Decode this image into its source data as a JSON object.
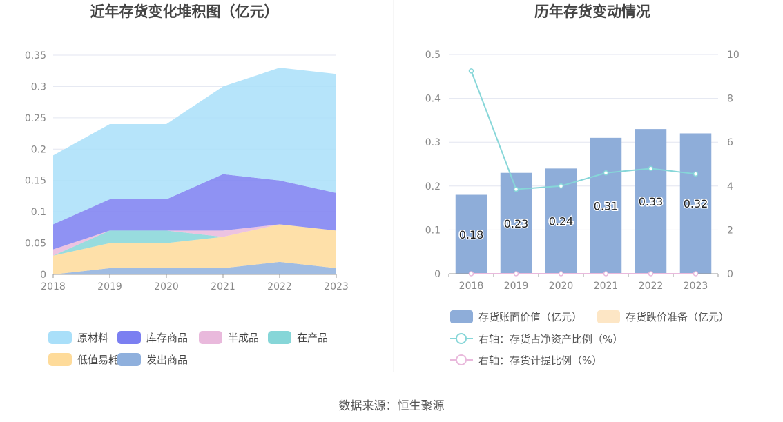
{
  "footer": {
    "source": "数据来源：恒生聚源"
  },
  "chart_data": [
    {
      "type": "area",
      "stacked": true,
      "title": "近年存货变化堆积图（亿元）",
      "categories": [
        "2018",
        "2019",
        "2020",
        "2021",
        "2022",
        "2023"
      ],
      "ylim": [
        0,
        0.35
      ],
      "yticks": [
        "0",
        "0.05",
        "0.1",
        "0.15",
        "0.2",
        "0.25",
        "0.3",
        "0.35"
      ],
      "grid": true,
      "legend_position": "bottom",
      "series": [
        {
          "name": "发出商品",
          "color": "#8fb0dd",
          "values": [
            0.0,
            0.01,
            0.01,
            0.01,
            0.02,
            0.01
          ]
        },
        {
          "name": "低值易耗品",
          "color": "#fedb9a",
          "values": [
            0.03,
            0.04,
            0.04,
            0.05,
            0.06,
            0.06
          ]
        },
        {
          "name": "在产品",
          "color": "#86d6d8",
          "values": [
            0.0,
            0.02,
            0.02,
            0.0,
            0.0,
            0.0
          ]
        },
        {
          "name": "半成品",
          "color": "#e9b9dc",
          "values": [
            0.01,
            0.0,
            0.0,
            0.01,
            0.0,
            0.0
          ]
        },
        {
          "name": "库存商品",
          "color": "#7b7ff1",
          "values": [
            0.04,
            0.05,
            0.05,
            0.09,
            0.07,
            0.06
          ]
        },
        {
          "name": "原材料",
          "color": "#a9dff9",
          "values": [
            0.11,
            0.12,
            0.12,
            0.14,
            0.18,
            0.19
          ]
        }
      ],
      "legend_order": [
        "原材料",
        "库存商品",
        "半成品",
        "在产品",
        "低值易耗品",
        "发出商品"
      ]
    },
    {
      "type": "bar",
      "title": "历年存货变动情况",
      "categories": [
        "2018",
        "2019",
        "2020",
        "2021",
        "2022",
        "2023"
      ],
      "ylim": [
        0,
        0.5
      ],
      "yticks": [
        "0",
        "0.1",
        "0.2",
        "0.3",
        "0.4",
        "0.5"
      ],
      "y2lim": [
        0,
        10
      ],
      "y2ticks": [
        "0",
        "2",
        "4",
        "6",
        "8",
        "10"
      ],
      "grid": true,
      "legend_position": "bottom",
      "series": [
        {
          "name": "存货账面价值（亿元）",
          "kind": "bar",
          "axis": "left",
          "color": "#8eadd9",
          "values": [
            0.18,
            0.23,
            0.24,
            0.31,
            0.33,
            0.32
          ],
          "labels": [
            "0.18",
            "0.23",
            "0.24",
            "0.31",
            "0.33",
            "0.32"
          ]
        },
        {
          "name": "存货跌价准备（亿元）",
          "kind": "bar",
          "axis": "left",
          "color": "#fde6c5",
          "values": [
            0,
            0,
            0,
            0,
            0,
            0
          ]
        },
        {
          "name": "右轴：存货占净资产比例（%）",
          "kind": "line",
          "axis": "right",
          "color": "#86d6d8",
          "values": [
            9.25,
            3.85,
            4.0,
            4.6,
            4.8,
            4.55
          ]
        },
        {
          "name": "右轴：存货计提比例（%）",
          "kind": "line",
          "axis": "right",
          "color": "#e9b9dc",
          "values": [
            0,
            0,
            0,
            0,
            0,
            0
          ]
        }
      ]
    }
  ]
}
